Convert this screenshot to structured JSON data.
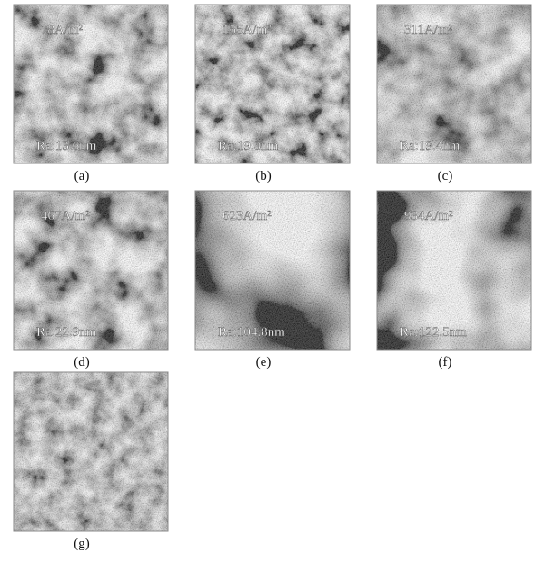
{
  "panels": [
    {
      "current": "78A/m²",
      "roughness": "Ra:13.6nm",
      "label": "(a)"
    },
    {
      "current": "155A/m²",
      "roughness": "Ra:19.0nm",
      "label": "(b)"
    },
    {
      "current": "311A/m²",
      "roughness": "Ra:19.4nm",
      "label": "(c)"
    },
    {
      "current": "467A/m²",
      "roughness": "Ra:22.9nm",
      "label": "(d)"
    },
    {
      "current": "623A/m²",
      "roughness": "Ra:104.8nm",
      "label": "(e)"
    },
    {
      "current": "934A/m²",
      "roughness": "Ra:122.5nm",
      "label": "(f)"
    },
    {
      "label": "(g)"
    }
  ]
}
